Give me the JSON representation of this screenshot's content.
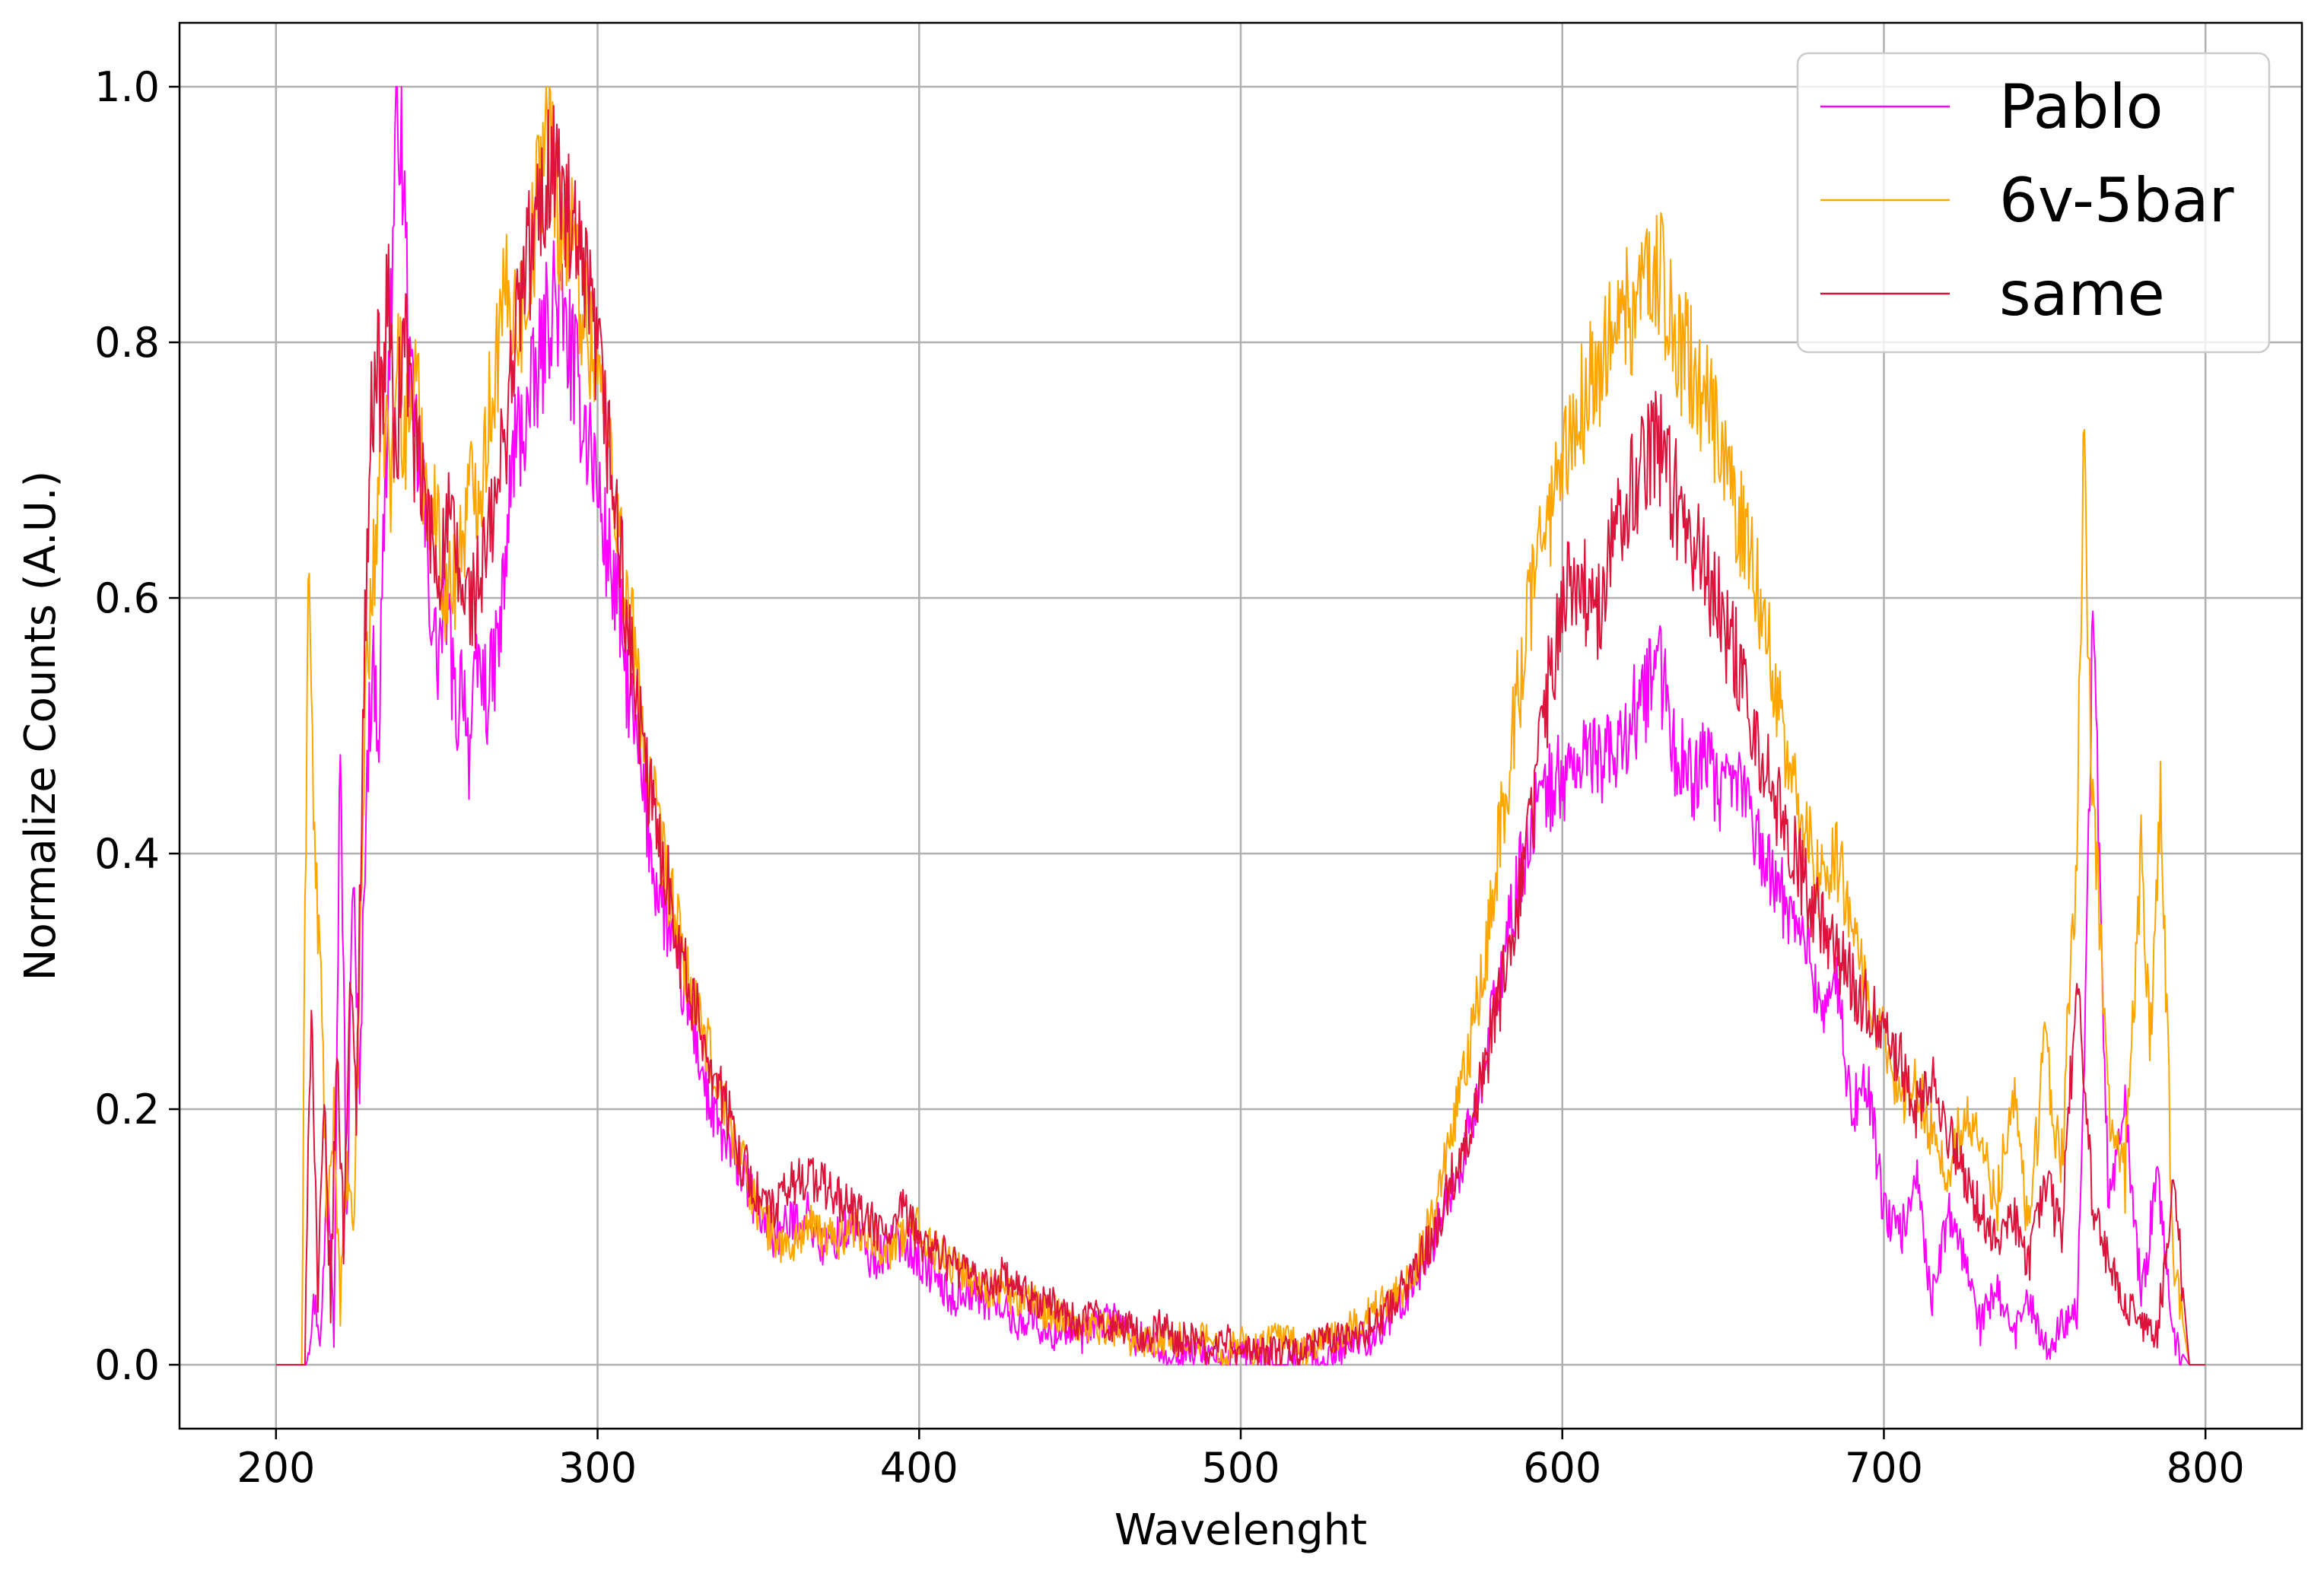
{
  "chart_data": {
    "type": "line",
    "title": "",
    "xlabel": "Wavelenght",
    "ylabel": "Normalize Counts (A.U.)",
    "xlim": [
      170,
      830
    ],
    "ylim": [
      -0.05,
      1.05
    ],
    "xticks": [
      200,
      300,
      400,
      500,
      600,
      700,
      800
    ],
    "xtick_labels": [
      "200",
      "300",
      "400",
      "500",
      "600",
      "700",
      "800"
    ],
    "yticks": [
      0.0,
      0.2,
      0.4,
      0.6,
      0.8,
      1.0
    ],
    "ytick_labels": [
      "0.0",
      "0.2",
      "0.4",
      "0.6",
      "0.8",
      "1.0"
    ],
    "grid": true,
    "legend_position": "top-right",
    "series": [
      {
        "name": "Pablo",
        "color": "#ff00ff",
        "x": [
          200,
          209,
          212,
          214,
          216,
          218,
          220,
          222,
          224,
          226,
          228,
          230,
          232,
          234,
          236,
          238,
          240,
          242,
          245,
          248,
          250,
          253,
          256,
          258,
          260,
          263,
          266,
          270,
          274,
          278,
          282,
          286,
          290,
          294,
          298,
          302,
          306,
          310,
          314,
          318,
          322,
          326,
          330,
          335,
          340,
          345,
          350,
          355,
          360,
          365,
          370,
          375,
          380,
          385,
          390,
          395,
          400,
          405,
          410,
          415,
          420,
          425,
          430,
          435,
          440,
          445,
          450,
          455,
          460,
          465,
          470,
          475,
          480,
          485,
          490,
          495,
          500,
          505,
          510,
          515,
          520,
          525,
          530,
          535,
          540,
          545,
          550,
          555,
          560,
          565,
          570,
          575,
          580,
          585,
          590,
          595,
          600,
          605,
          610,
          615,
          620,
          625,
          630,
          635,
          640,
          645,
          650,
          655,
          660,
          665,
          670,
          675,
          680,
          685,
          690,
          695,
          700,
          705,
          710,
          715,
          720,
          725,
          730,
          735,
          740,
          745,
          750,
          755,
          760,
          762,
          765,
          768,
          770,
          775,
          780,
          785,
          790,
          795,
          800
        ],
        "y": [
          0,
          0,
          0.05,
          0.02,
          0.15,
          0.05,
          0.5,
          0.1,
          0.4,
          0.2,
          0.45,
          0.55,
          0.5,
          0.7,
          0.85,
          1.0,
          0.9,
          0.75,
          0.7,
          0.6,
          0.55,
          0.6,
          0.5,
          0.55,
          0.48,
          0.55,
          0.52,
          0.58,
          0.72,
          0.74,
          0.78,
          0.84,
          0.81,
          0.76,
          0.72,
          0.65,
          0.6,
          0.52,
          0.45,
          0.38,
          0.34,
          0.3,
          0.26,
          0.2,
          0.17,
          0.15,
          0.12,
          0.1,
          0.11,
          0.12,
          0.09,
          0.1,
          0.11,
          0.08,
          0.09,
          0.1,
          0.08,
          0.07,
          0.05,
          0.06,
          0.05,
          0.05,
          0.03,
          0.04,
          0.02,
          0.03,
          0.02,
          0.03,
          0.04,
          0.02,
          0.02,
          0.01,
          0.01,
          0.01,
          0.01,
          0,
          0.01,
          0.01,
          0,
          0,
          0.01,
          0,
          0.01,
          0.02,
          0.02,
          0.03,
          0.05,
          0.07,
          0.1,
          0.13,
          0.17,
          0.22,
          0.3,
          0.36,
          0.42,
          0.45,
          0.46,
          0.47,
          0.48,
          0.47,
          0.5,
          0.52,
          0.55,
          0.48,
          0.46,
          0.47,
          0.44,
          0.46,
          0.42,
          0.38,
          0.36,
          0.34,
          0.28,
          0.3,
          0.2,
          0.22,
          0.12,
          0.1,
          0.15,
          0.05,
          0.12,
          0.08,
          0.03,
          0.06,
          0.02,
          0.05,
          0.01,
          0.03,
          0.05,
          0.2,
          0.58,
          0.3,
          0.12,
          0.2,
          0.05,
          0.15,
          0.02,
          0,
          0
        ],
        "spike_x": [],
        "spike_y": []
      },
      {
        "name": "6v-5bar",
        "color": "#ffa500",
        "x": [
          200,
          208,
          210,
          212,
          214,
          216,
          218,
          220,
          222,
          224,
          226,
          228,
          230,
          232,
          234,
          236,
          238,
          240,
          243,
          246,
          250,
          253,
          256,
          260,
          264,
          268,
          272,
          276,
          280,
          284,
          288,
          292,
          296,
          300,
          304,
          308,
          312,
          316,
          320,
          325,
          330,
          335,
          340,
          345,
          350,
          355,
          360,
          365,
          370,
          375,
          380,
          385,
          390,
          395,
          400,
          405,
          410,
          415,
          420,
          425,
          430,
          435,
          440,
          445,
          450,
          455,
          460,
          465,
          470,
          475,
          480,
          485,
          490,
          495,
          500,
          505,
          510,
          515,
          520,
          525,
          530,
          535,
          540,
          545,
          550,
          555,
          560,
          565,
          570,
          575,
          580,
          585,
          590,
          595,
          600,
          605,
          610,
          615,
          620,
          625,
          630,
          635,
          640,
          645,
          650,
          655,
          660,
          665,
          670,
          675,
          680,
          685,
          690,
          695,
          700,
          705,
          710,
          715,
          720,
          725,
          730,
          735,
          740,
          745,
          750,
          755,
          760,
          762,
          765,
          768,
          770,
          775,
          780,
          783,
          786,
          790,
          795,
          800
        ],
        "y": [
          0,
          0,
          0.65,
          0.4,
          0.3,
          0.1,
          0.2,
          0.05,
          0.15,
          0.1,
          0.3,
          0.55,
          0.6,
          0.7,
          0.75,
          0.68,
          0.8,
          0.72,
          0.78,
          0.7,
          0.66,
          0.6,
          0.62,
          0.68,
          0.7,
          0.78,
          0.84,
          0.82,
          0.88,
          0.98,
          0.9,
          0.88,
          0.82,
          0.78,
          0.72,
          0.62,
          0.55,
          0.46,
          0.4,
          0.34,
          0.28,
          0.24,
          0.2,
          0.16,
          0.12,
          0.1,
          0.09,
          0.11,
          0.1,
          0.1,
          0.11,
          0.1,
          0.09,
          0.1,
          0.11,
          0.09,
          0.08,
          0.07,
          0.06,
          0.06,
          0.05,
          0.05,
          0.04,
          0.04,
          0.03,
          0.03,
          0.03,
          0.02,
          0.02,
          0.02,
          0.02,
          0.02,
          0.02,
          0.01,
          0.02,
          0.01,
          0.02,
          0.02,
          0.01,
          0.02,
          0.02,
          0.03,
          0.04,
          0.05,
          0.06,
          0.08,
          0.12,
          0.17,
          0.23,
          0.3,
          0.4,
          0.5,
          0.6,
          0.66,
          0.7,
          0.74,
          0.78,
          0.8,
          0.82,
          0.84,
          0.86,
          0.8,
          0.78,
          0.75,
          0.72,
          0.66,
          0.62,
          0.55,
          0.48,
          0.42,
          0.38,
          0.4,
          0.35,
          0.3,
          0.25,
          0.2,
          0.22,
          0.18,
          0.15,
          0.2,
          0.18,
          0.12,
          0.22,
          0.1,
          0.25,
          0.15,
          0.4,
          0.72,
          0.45,
          0.3,
          0.2,
          0.15,
          0.4,
          0.25,
          0.45,
          0.08,
          0,
          0
        ],
        "spike_x": [],
        "spike_y": []
      },
      {
        "name": "same",
        "color": "#dc143c",
        "x": [
          200,
          209,
          211,
          213,
          215,
          217,
          219,
          221,
          223,
          225,
          227,
          229,
          231,
          233,
          235,
          237,
          240,
          243,
          246,
          250,
          254,
          258,
          262,
          266,
          270,
          274,
          278,
          282,
          286,
          290,
          294,
          298,
          302,
          306,
          310,
          314,
          318,
          322,
          326,
          330,
          335,
          340,
          345,
          350,
          355,
          360,
          365,
          370,
          375,
          380,
          385,
          390,
          395,
          400,
          405,
          410,
          415,
          420,
          425,
          430,
          435,
          440,
          445,
          450,
          455,
          460,
          465,
          470,
          475,
          480,
          485,
          490,
          495,
          500,
          505,
          510,
          515,
          520,
          525,
          530,
          535,
          540,
          545,
          550,
          555,
          560,
          565,
          570,
          575,
          580,
          585,
          590,
          595,
          600,
          605,
          610,
          615,
          620,
          625,
          630,
          635,
          640,
          645,
          650,
          655,
          660,
          665,
          670,
          675,
          680,
          685,
          690,
          695,
          700,
          705,
          710,
          715,
          720,
          725,
          730,
          735,
          740,
          745,
          750,
          755,
          760,
          765,
          770,
          775,
          780,
          785,
          790,
          795,
          800
        ],
        "y": [
          0,
          0,
          0.3,
          0.05,
          0.2,
          0.05,
          0.25,
          0.1,
          0.3,
          0.2,
          0.5,
          0.7,
          0.8,
          0.75,
          0.85,
          0.7,
          0.82,
          0.72,
          0.68,
          0.62,
          0.66,
          0.6,
          0.6,
          0.64,
          0.7,
          0.8,
          0.86,
          0.9,
          0.95,
          0.9,
          0.86,
          0.82,
          0.75,
          0.66,
          0.56,
          0.48,
          0.42,
          0.38,
          0.32,
          0.28,
          0.24,
          0.2,
          0.16,
          0.13,
          0.12,
          0.14,
          0.15,
          0.14,
          0.13,
          0.12,
          0.11,
          0.1,
          0.12,
          0.1,
          0.09,
          0.08,
          0.07,
          0.06,
          0.07,
          0.06,
          0.05,
          0.05,
          0.04,
          0.03,
          0.04,
          0.03,
          0.03,
          0.02,
          0.03,
          0.02,
          0.02,
          0.01,
          0.02,
          0.01,
          0.01,
          0.01,
          0.01,
          0.01,
          0.02,
          0.02,
          0.02,
          0.03,
          0.04,
          0.06,
          0.08,
          0.1,
          0.14,
          0.18,
          0.22,
          0.28,
          0.34,
          0.42,
          0.52,
          0.6,
          0.62,
          0.58,
          0.64,
          0.68,
          0.7,
          0.72,
          0.68,
          0.65,
          0.62,
          0.58,
          0.55,
          0.5,
          0.45,
          0.42,
          0.38,
          0.35,
          0.32,
          0.3,
          0.28,
          0.26,
          0.24,
          0.2,
          0.22,
          0.18,
          0.15,
          0.12,
          0.1,
          0.12,
          0.08,
          0.15,
          0.1,
          0.3,
          0.12,
          0.08,
          0.05,
          0.03,
          0.02,
          0.15,
          0,
          0
        ],
        "spike_x": [],
        "spike_y": []
      }
    ]
  }
}
